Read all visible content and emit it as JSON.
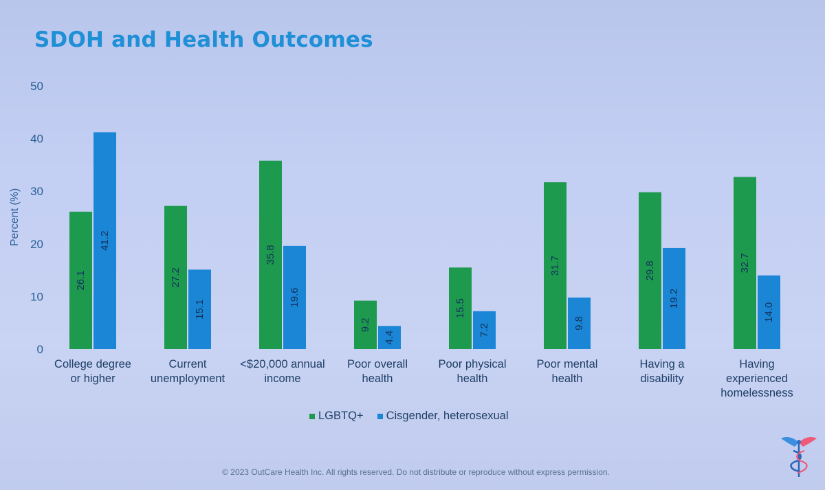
{
  "slide": {
    "title": "SDOH and Health Outcomes",
    "copyright": "© 2023 OutCare Health Inc.  All rights reserved. Do not distribute or reproduce without express permission."
  },
  "chart_data": {
    "type": "bar",
    "title": "SDOH and Health Outcomes",
    "xlabel": "",
    "ylabel": "Percent (%)",
    "ylim": [
      0,
      50
    ],
    "yticks": [
      0,
      10,
      20,
      30,
      40,
      50
    ],
    "grid": false,
    "legend_position": "bottom-center",
    "categories": [
      [
        "College degree",
        "or higher"
      ],
      [
        "Current",
        "unemployment"
      ],
      [
        "<$20,000 annual",
        "income"
      ],
      [
        "Poor overall",
        "health"
      ],
      [
        "Poor physical",
        "health"
      ],
      [
        "Poor mental",
        "health"
      ],
      [
        "Having a",
        "disability"
      ],
      [
        "Having",
        "experienced",
        "homelessness"
      ]
    ],
    "series": [
      {
        "name": "LGBTQ+",
        "color": "#1e9a4f",
        "values": [
          26.1,
          27.2,
          35.8,
          9.2,
          15.5,
          31.7,
          29.8,
          32.7
        ],
        "labels": [
          "26.1",
          "27.2",
          "35.8",
          "9.2",
          "15.5",
          "31.7",
          "29.8",
          "32.7"
        ]
      },
      {
        "name": "Cisgender, heterosexual",
        "color": "#1b86d6",
        "values": [
          41.2,
          15.1,
          19.6,
          4.4,
          7.2,
          9.8,
          19.2,
          14.0
        ],
        "labels": [
          "41.2",
          "15.1",
          "19.6",
          "4.4",
          "7.2",
          "9.8",
          "19.2",
          "14.0"
        ]
      }
    ]
  },
  "icons": {
    "logo": "caduceus-logo-icon"
  }
}
